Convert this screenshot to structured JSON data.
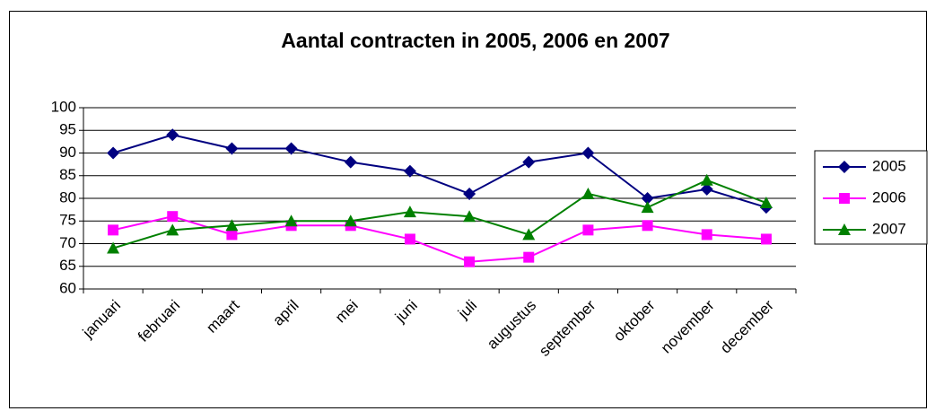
{
  "chart_data": {
    "type": "line",
    "title": "Aantal contracten in 2005, 2006 en 2007",
    "categories": [
      "januari",
      "februari",
      "maart",
      "april",
      "mei",
      "juni",
      "juli",
      "augustus",
      "september",
      "oktober",
      "november",
      "december"
    ],
    "series": [
      {
        "name": "2005",
        "color": "#000080",
        "marker": "diamond",
        "values": [
          90,
          94,
          91,
          91,
          88,
          86,
          81,
          88,
          90,
          80,
          82,
          78
        ]
      },
      {
        "name": "2006",
        "color": "#ff00ff",
        "marker": "square",
        "values": [
          73,
          76,
          72,
          74,
          74,
          71,
          66,
          67,
          73,
          74,
          72,
          71
        ]
      },
      {
        "name": "2007",
        "color": "#008000",
        "marker": "triangle",
        "values": [
          69,
          73,
          74,
          75,
          75,
          77,
          76,
          72,
          81,
          78,
          84,
          79
        ]
      }
    ],
    "ylim": [
      60,
      100
    ],
    "yticks": [
      60,
      65,
      70,
      75,
      80,
      85,
      90,
      95,
      100
    ],
    "grid": true,
    "legend": "right"
  }
}
